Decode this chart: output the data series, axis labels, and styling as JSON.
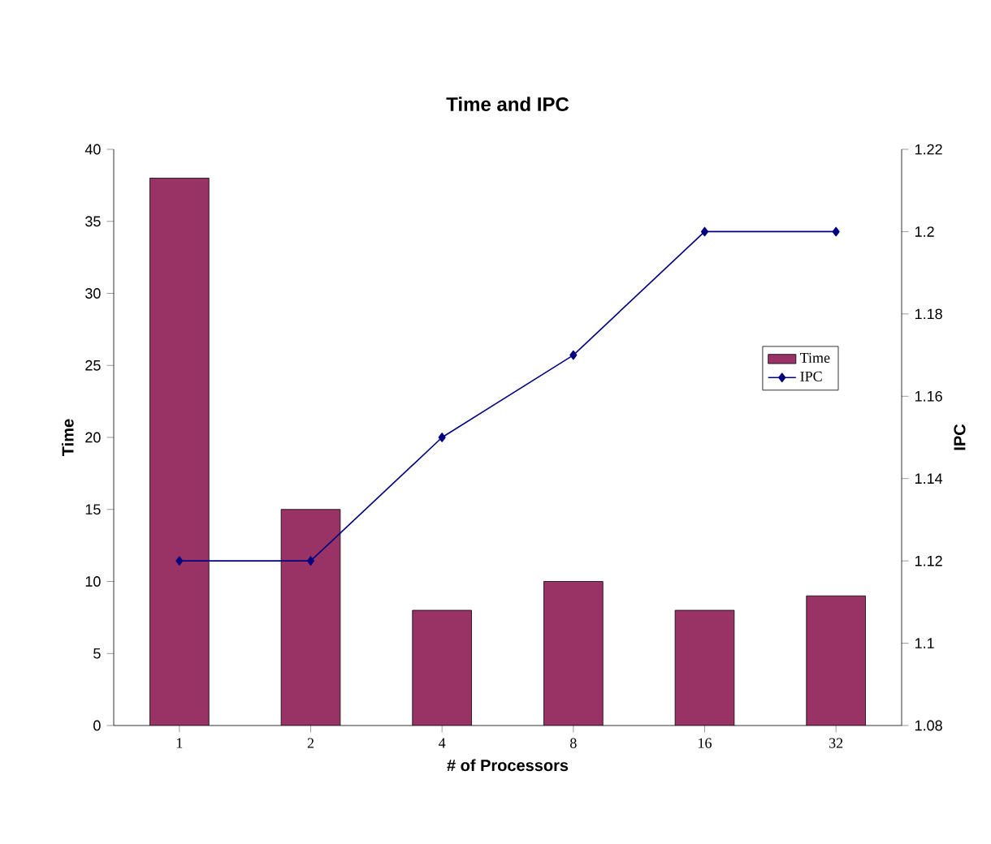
{
  "chart_data": {
    "type": "bar",
    "title": "Time and IPC",
    "xlabel": "# of Processors",
    "ylabel": "Time",
    "y2label": "IPC",
    "categories": [
      "1",
      "2",
      "4",
      "8",
      "16",
      "32"
    ],
    "series": [
      {
        "name": "Time",
        "color": "#993366",
        "values": [
          38,
          15,
          8,
          10,
          8,
          9
        ]
      },
      {
        "name": "IPC",
        "type": "line",
        "axis": "y2",
        "color": "#000080",
        "values": [
          1.12,
          1.12,
          1.15,
          1.17,
          1.2,
          1.2
        ]
      }
    ],
    "marker": "diamond",
    "legend": "right",
    "ylim": [
      0,
      40
    ],
    "yticks": [
      0,
      5,
      10,
      15,
      20,
      25,
      30,
      35,
      40
    ],
    "y2lim": [
      1.08,
      1.22
    ],
    "y2ticks": [
      1.08,
      1.1,
      1.12,
      1.14,
      1.16,
      1.18,
      1.2,
      1.22
    ]
  }
}
